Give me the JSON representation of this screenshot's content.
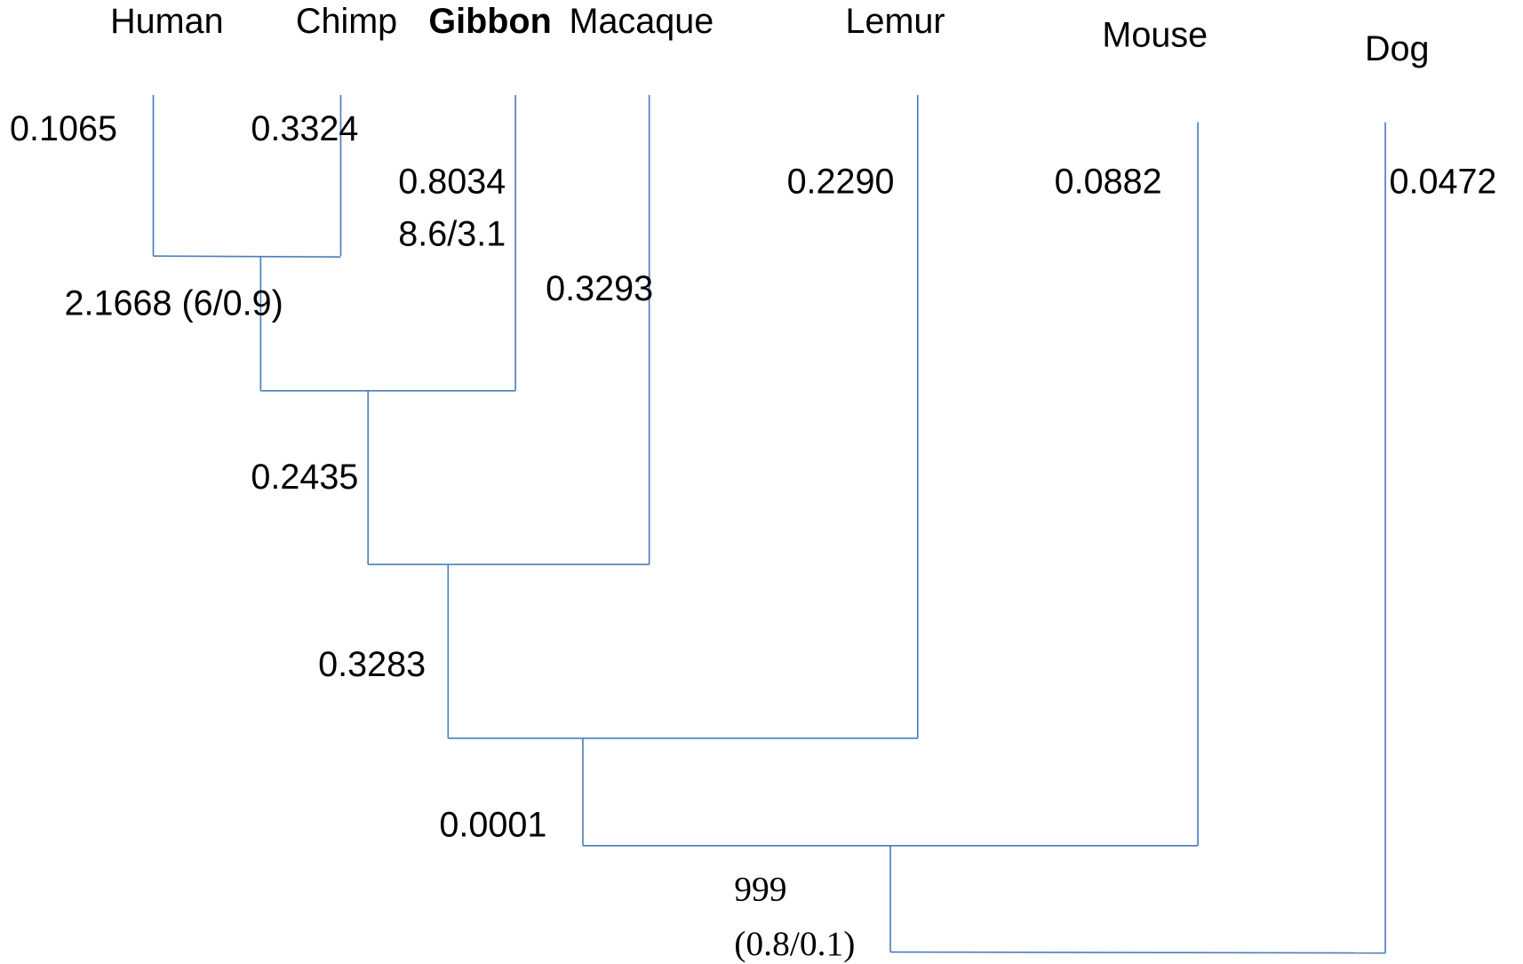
{
  "taxa": [
    "Human",
    "Chimp",
    "Gibbon",
    "Macaque",
    "Lemur",
    "Mouse",
    "Dog"
  ],
  "branch_labels": {
    "human": "0.1065",
    "chimp": "0.3324",
    "gibbon": [
      "0.8034",
      "8.6/3.1"
    ],
    "human_chimp": "2.1668 (6/0.9)",
    "macaque": "0.3293",
    "great_apes": "0.2435",
    "lemur": "0.2290",
    "primates": "0.3283",
    "mouse": "0.0882",
    "primates_mouse": "0.0001",
    "dog": "0.0472",
    "root": [
      "999",
      "(0.8/0.1)"
    ]
  }
}
